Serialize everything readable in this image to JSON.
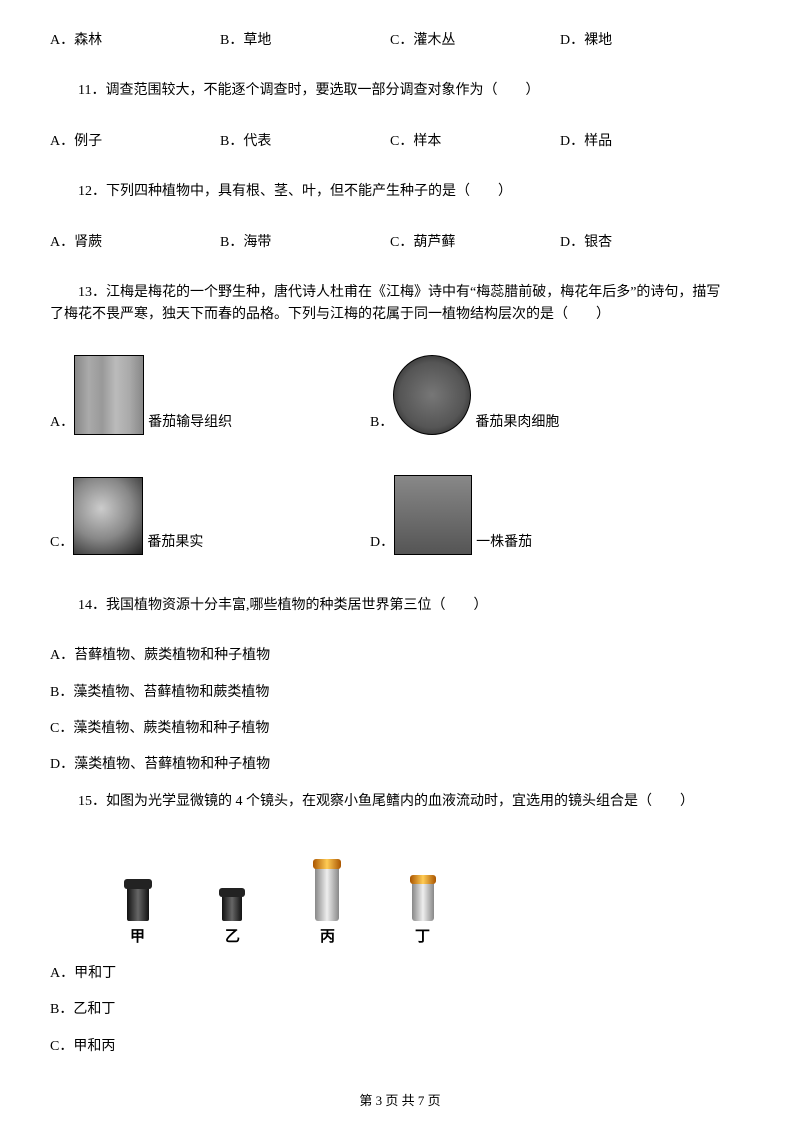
{
  "q10": {
    "options": {
      "A": "A．森林",
      "B": "B．草地",
      "C": "C．灌木丛",
      "D": "D．裸地"
    }
  },
  "q11": {
    "stem": "11．调查范围较大，不能逐个调查时，要选取一部分调查对象作为（　　）",
    "options": {
      "A": "A．例子",
      "B": "B．代表",
      "C": "C．样本",
      "D": "D．样品"
    }
  },
  "q12": {
    "stem": "12．下列四种植物中，具有根、茎、叶，但不能产生种子的是（　　）",
    "options": {
      "A": "A．肾蕨",
      "B": "B．海带",
      "C": "C．葫芦藓",
      "D": "D．银杏"
    }
  },
  "q13": {
    "line1": "13．江梅是梅花的一个野生种，唐代诗人杜甫在《江梅》诗中有“梅蕊腊前破，梅花年后多”的诗句，描写",
    "line2": "了梅花不畏严寒，独天下而春的品格。下列与江梅的花属于同一植物结构层次的是（　　）",
    "options": {
      "A_prefix": "A．",
      "A_label": "番茄输导组织",
      "B_prefix": "B．",
      "B_label": "番茄果肉细胞",
      "C_prefix": "C．",
      "C_label": "番茄果实",
      "D_prefix": "D．",
      "D_label": "一株番茄"
    }
  },
  "q14": {
    "stem": "14．我国植物资源十分丰富,哪些植物的种类居世界第三位（　　）",
    "options": {
      "A": "A．苔藓植物、蕨类植物和种子植物",
      "B": "B．藻类植物、苔藓植物和蕨类植物",
      "C": "C．藻类植物、蕨类植物和种子植物",
      "D": "D．藻类植物、苔藓植物和种子植物"
    }
  },
  "q15": {
    "stem": "15．如图为光学显微镜的 4 个镜头，在观察小鱼尾鳍内的血液流动时，宜选用的镜头组合是（　　）",
    "labels": {
      "a": "甲",
      "b": "乙",
      "c": "丙",
      "d": "丁"
    },
    "options": {
      "A": "A．甲和丁",
      "B": "B．乙和丁",
      "C": "C．甲和丙"
    }
  },
  "footer": "第 3 页 共 7 页"
}
